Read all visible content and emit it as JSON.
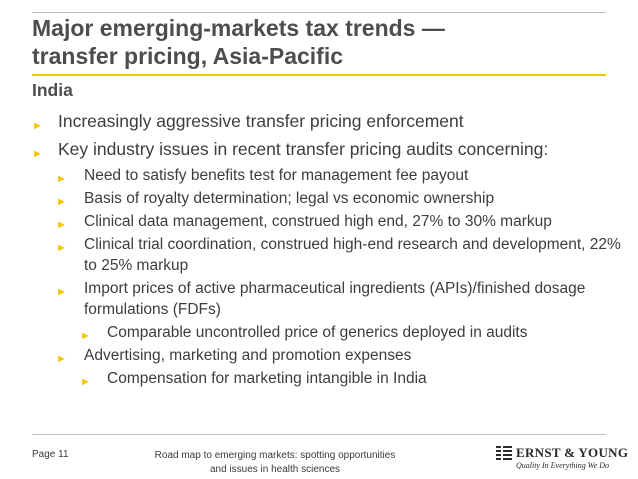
{
  "slide": {
    "title_line1": "Major emerging-markets tax trends —",
    "title_line2": "transfer pricing, Asia-Pacific",
    "subtitle": "India",
    "bullets": [
      "Increasingly aggressive transfer pricing enforcement",
      "Key industry issues in recent transfer pricing audits concerning:",
      "Need to satisfy benefits test for management fee payout",
      "Basis of royalty determination; legal vs economic ownership",
      "Clinical data management, construed high end, 27% to 30% markup",
      "Clinical trial coordination, construed high-end research and development, 22% to 25% markup",
      "Import prices of active pharmaceutical ingredients (APIs)/finished dosage formulations (FDFs)",
      "Comparable uncontrolled price of generics deployed in audits",
      "Advertising, marketing and promotion expenses",
      "Compensation for marketing intangible in India"
    ],
    "bullet_glyph": "►",
    "accent_color": "#f2c500"
  },
  "footer": {
    "page": "Page 11",
    "doc_title_line1": "Road map to emerging markets: spotting opportunities",
    "doc_title_line2": "and issues in health sciences",
    "logo_name": "ERNST & YOUNG",
    "logo_tagline": "Quality In Everything We Do"
  }
}
